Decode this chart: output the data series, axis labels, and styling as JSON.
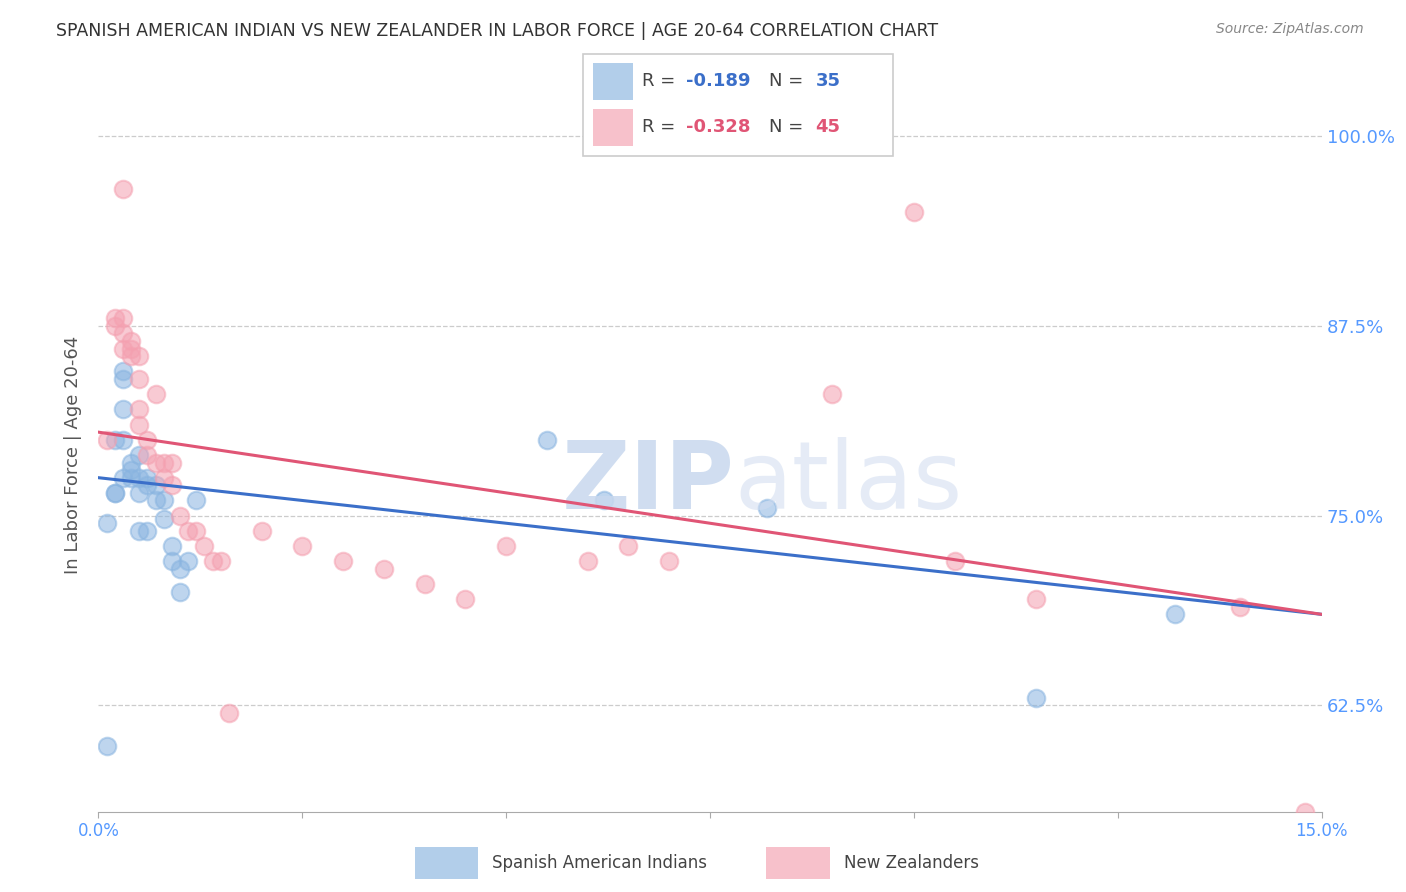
{
  "title": "SPANISH AMERICAN INDIAN VS NEW ZEALANDER IN LABOR FORCE | AGE 20-64 CORRELATION CHART",
  "source": "Source: ZipAtlas.com",
  "ylabel": "In Labor Force | Age 20-64",
  "xlim": [
    0.0,
    0.15
  ],
  "ylim": [
    0.555,
    1.025
  ],
  "yticks": [
    0.625,
    0.75,
    0.875,
    1.0
  ],
  "yticklabels": [
    "62.5%",
    "75.0%",
    "87.5%",
    "100.0%"
  ],
  "xtick_positions": [
    0.0,
    0.025,
    0.05,
    0.075,
    0.1,
    0.125,
    0.15
  ],
  "blue_R": -0.189,
  "blue_N": 35,
  "pink_R": -0.328,
  "pink_N": 45,
  "blue_color": "#89B4E0",
  "pink_color": "#F4A0B0",
  "blue_line_color": "#3B6FC9",
  "pink_line_color": "#E05575",
  "axis_color": "#5599FF",
  "blue_x": [
    0.001,
    0.001,
    0.002,
    0.002,
    0.002,
    0.003,
    0.003,
    0.003,
    0.003,
    0.003,
    0.004,
    0.004,
    0.004,
    0.005,
    0.005,
    0.005,
    0.005,
    0.006,
    0.006,
    0.006,
    0.007,
    0.007,
    0.008,
    0.008,
    0.009,
    0.009,
    0.01,
    0.01,
    0.011,
    0.012,
    0.055,
    0.062,
    0.082,
    0.115,
    0.132
  ],
  "blue_y": [
    0.598,
    0.745,
    0.765,
    0.8,
    0.765,
    0.845,
    0.84,
    0.82,
    0.8,
    0.775,
    0.785,
    0.78,
    0.775,
    0.79,
    0.775,
    0.765,
    0.74,
    0.775,
    0.77,
    0.74,
    0.77,
    0.76,
    0.76,
    0.748,
    0.73,
    0.72,
    0.715,
    0.7,
    0.72,
    0.76,
    0.8,
    0.76,
    0.755,
    0.63,
    0.685
  ],
  "pink_x": [
    0.001,
    0.002,
    0.002,
    0.003,
    0.003,
    0.003,
    0.003,
    0.004,
    0.004,
    0.004,
    0.005,
    0.005,
    0.005,
    0.005,
    0.006,
    0.006,
    0.007,
    0.007,
    0.008,
    0.008,
    0.009,
    0.009,
    0.01,
    0.011,
    0.012,
    0.013,
    0.014,
    0.015,
    0.016,
    0.02,
    0.025,
    0.03,
    0.035,
    0.04,
    0.045,
    0.05,
    0.06,
    0.065,
    0.07,
    0.09,
    0.1,
    0.105,
    0.115,
    0.14,
    0.148
  ],
  "pink_y": [
    0.8,
    0.88,
    0.875,
    0.965,
    0.88,
    0.87,
    0.86,
    0.865,
    0.86,
    0.855,
    0.855,
    0.84,
    0.82,
    0.81,
    0.8,
    0.79,
    0.83,
    0.785,
    0.785,
    0.775,
    0.785,
    0.77,
    0.75,
    0.74,
    0.74,
    0.73,
    0.72,
    0.72,
    0.62,
    0.74,
    0.73,
    0.72,
    0.715,
    0.705,
    0.695,
    0.73,
    0.72,
    0.73,
    0.72,
    0.83,
    0.95,
    0.72,
    0.695,
    0.69,
    0.555
  ],
  "blue_line_x0": 0.0,
  "blue_line_x1": 0.15,
  "blue_line_y0": 0.775,
  "blue_line_y1": 0.685,
  "pink_line_x0": 0.0,
  "pink_line_x1": 0.15,
  "pink_line_y0": 0.805,
  "pink_line_y1": 0.685
}
